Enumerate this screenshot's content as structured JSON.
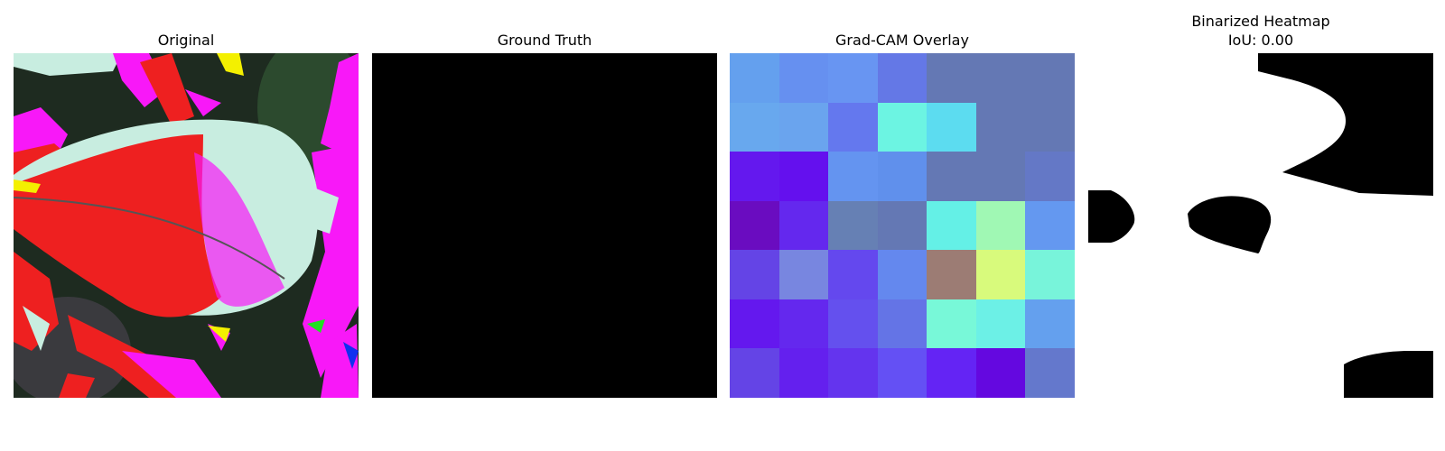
{
  "panels": [
    {
      "title": "Original"
    },
    {
      "title": "Ground Truth"
    },
    {
      "title": "Grad-CAM Overlay"
    },
    {
      "title_line1": "Binarized Heatmap",
      "title_line2": "IoU: 0.00"
    }
  ],
  "gradcam_grid": [
    [
      "#64a0ee",
      "#6690f0",
      "#6895f2",
      "#6478e6",
      "#6478b4",
      "#6478b4",
      "#6478b4"
    ],
    [
      "#68a8ee",
      "#6aa4ee",
      "#6478ee",
      "#6cf4e2",
      "#5cdcf0",
      "#6478b4",
      "#6478b4"
    ],
    [
      "#6418ee",
      "#6410ee",
      "#6494f0",
      "#6090ec",
      "#6478b4",
      "#6478b4",
      "#6478c6"
    ],
    [
      "#6a0cc0",
      "#6428ee",
      "#6680b4",
      "#6478b4",
      "#64f0e6",
      "#a0f8b4",
      "#6498f0"
    ],
    [
      "#6444e6",
      "#7886e0",
      "#6448ee",
      "#6488ee",
      "#9c7c74",
      "#d8fa7c",
      "#78f4da"
    ],
    [
      "#6418ee",
      "#6428ee",
      "#6450ee",
      "#6474e6",
      "#78f8d8",
      "#6cf0e6",
      "#64a0ee"
    ],
    [
      "#6444e6",
      "#6420ee",
      "#6434ee",
      "#6450f4",
      "#6424f4",
      "#6408e0",
      "#6478cc"
    ]
  ]
}
